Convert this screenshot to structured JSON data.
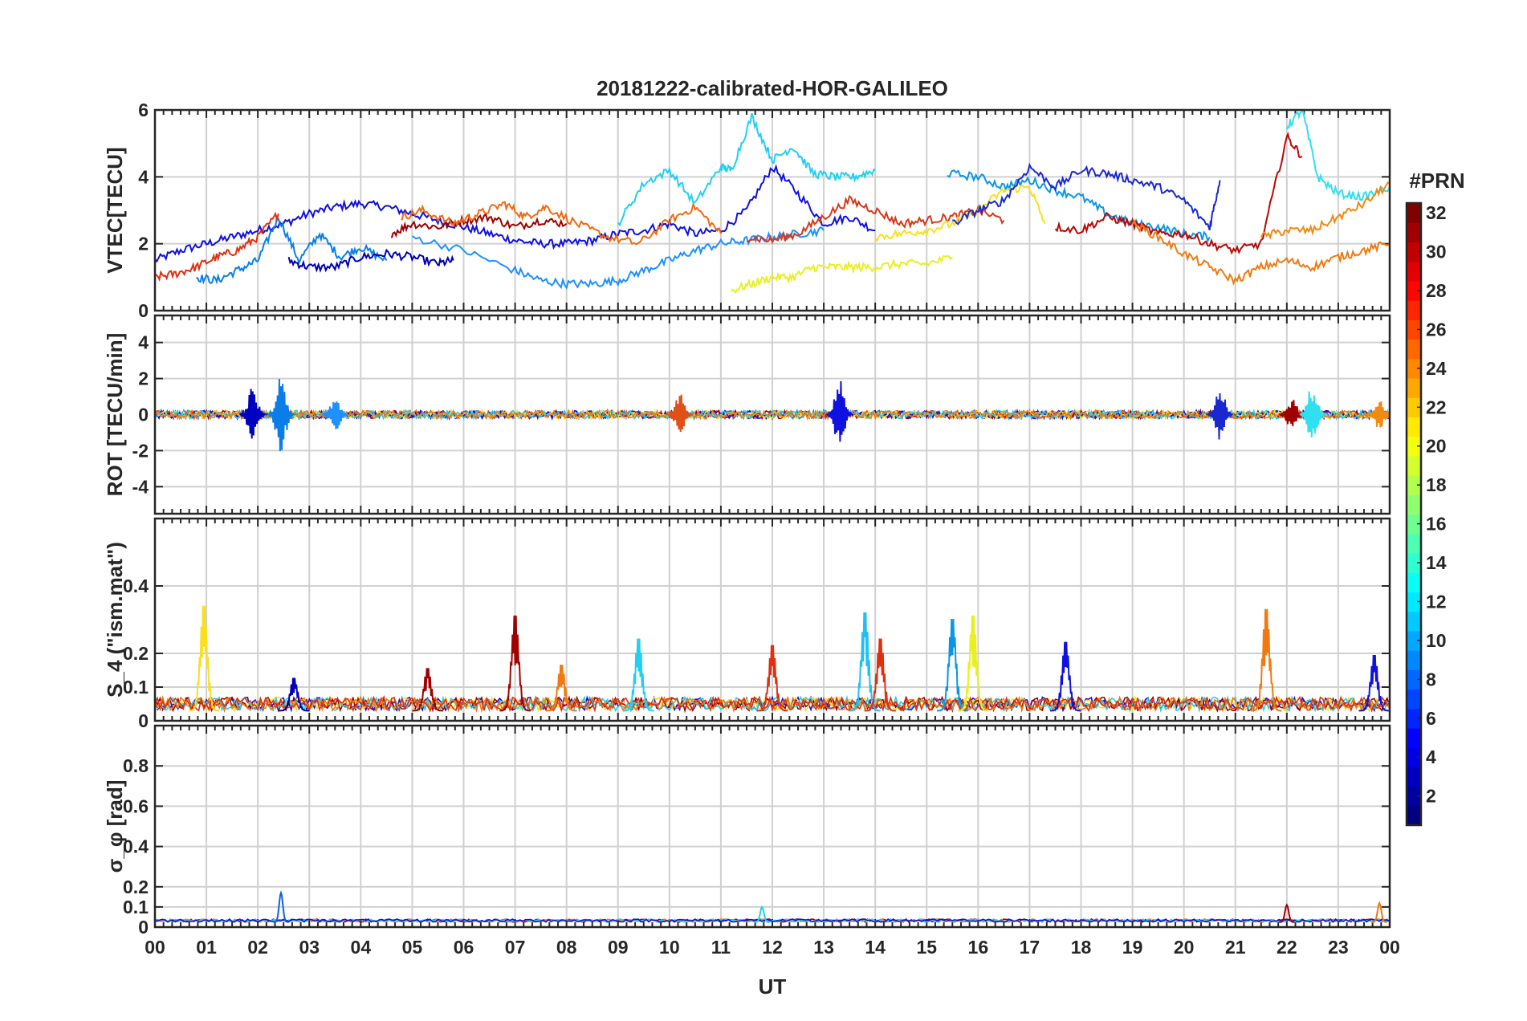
{
  "title": "20181222-calibrated-HOR-GALILEO",
  "chart_data": [
    {
      "type": "line",
      "panel": "vtec",
      "ylabel": "VTEC[TECU]",
      "ylim": [
        0,
        6
      ],
      "yticks": [
        0,
        2,
        4,
        6
      ],
      "yticklabels": [
        "0",
        "2",
        "4",
        "6"
      ],
      "grid": true,
      "series": [
        {
          "prn": 2,
          "color": "#1010e0",
          "x": [
            0,
            0.5,
            1,
            1.5,
            2,
            2.5,
            3,
            3.5,
            4,
            4.5,
            5,
            5.5,
            6,
            6.5,
            7,
            7.5,
            8,
            8.5,
            9,
            9.5,
            10,
            10.5,
            11,
            11.5,
            12,
            12.5,
            13,
            13.5,
            14
          ],
          "y": [
            1.5,
            1.8,
            2.0,
            2.2,
            2.4,
            2.6,
            2.9,
            3.1,
            3.2,
            3.1,
            2.9,
            2.7,
            2.5,
            2.3,
            2.1,
            2.0,
            2.0,
            2.1,
            2.3,
            2.4,
            2.6,
            2.3,
            2.4,
            3.0,
            4.3,
            3.5,
            2.6,
            2.8,
            2.4
          ]
        },
        {
          "prn": 9,
          "color": "#0a7ee8",
          "x": [
            0.8,
            1.2,
            1.6,
            2.0,
            2.4,
            2.8,
            3.2,
            3.6,
            4.0,
            4.5
          ],
          "y": [
            1.0,
            0.9,
            1.2,
            1.5,
            2.8,
            1.5,
            2.3,
            1.6,
            1.9,
            1.5
          ]
        },
        {
          "prn": 3,
          "color": "#0000b8",
          "x": [
            2.6,
            3.0,
            3.5,
            4.0,
            4.5,
            5.0,
            5.5,
            5.8
          ],
          "y": [
            1.5,
            1.3,
            1.3,
            1.6,
            1.7,
            1.6,
            1.4,
            1.5
          ]
        },
        {
          "prn": 27,
          "color": "#e03010",
          "x": [
            0,
            0.4,
            0.8,
            1.2,
            1.6,
            2.0,
            2.4
          ],
          "y": [
            1.0,
            1.1,
            1.3,
            1.6,
            1.8,
            2.2,
            2.9
          ]
        },
        {
          "prn": 31,
          "color": "#a00000",
          "x": [
            4.6,
            5.0,
            5.5,
            6.0,
            6.5,
            7.0,
            7.5,
            8.0
          ],
          "y": [
            2.3,
            2.6,
            2.5,
            2.7,
            2.8,
            2.5,
            2.7,
            2.6
          ]
        },
        {
          "prn": 24,
          "color": "#f06a10",
          "x": [
            4.8,
            5.2,
            5.8,
            6.3,
            6.8,
            7.2,
            7.6,
            8.2,
            8.8,
            9.4,
            10.0,
            10.5,
            11.0
          ],
          "y": [
            2.8,
            3.0,
            2.6,
            2.9,
            3.2,
            2.8,
            3.1,
            2.6,
            2.2,
            2.0,
            2.7,
            3.1,
            2.3
          ]
        },
        {
          "prn": 8,
          "color": "#1e90ff",
          "x": [
            5.0,
            6.0,
            7.0,
            7.5,
            8.0,
            8.5,
            9.0,
            9.5,
            10.0,
            10.5,
            11.0,
            11.5,
            12.0,
            12.5,
            13.0
          ],
          "y": [
            2.2,
            1.8,
            1.2,
            0.9,
            0.8,
            0.8,
            0.9,
            1.2,
            1.5,
            1.8,
            2.0,
            2.1,
            2.2,
            2.3,
            2.4
          ]
        },
        {
          "prn": 12,
          "color": "#20d0f0",
          "x": [
            9.0,
            9.5,
            10.0,
            10.5,
            11.0,
            11.2,
            11.6,
            12.0,
            12.4,
            12.8,
            13.2,
            13.6,
            14.0
          ],
          "y": [
            2.6,
            3.8,
            4.2,
            3.2,
            4.3,
            4.2,
            5.8,
            4.5,
            4.9,
            4.1,
            4.0,
            4.0,
            4.2
          ]
        },
        {
          "prn": 19,
          "color": "#e8f020",
          "x": [
            11.2,
            11.6,
            12.0,
            12.4,
            12.8,
            13.2,
            13.6,
            14.0,
            14.5,
            15.0,
            15.5
          ],
          "y": [
            0.6,
            0.8,
            1.0,
            1.0,
            1.3,
            1.3,
            1.3,
            1.3,
            1.4,
            1.4,
            1.6
          ]
        },
        {
          "prn": 26,
          "color": "#d83818",
          "x": [
            11.5,
            12.0,
            12.5,
            13.0,
            13.5,
            14.0,
            14.5,
            15.0,
            15.5,
            16.0,
            16.5
          ],
          "y": [
            2.2,
            2.1,
            2.3,
            2.8,
            3.3,
            3.0,
            2.6,
            2.7,
            2.8,
            3.0,
            2.7
          ]
        },
        {
          "prn": 10,
          "color": "#0a96e8",
          "x": [
            15.4,
            16.0,
            16.5,
            17.0,
            17.5,
            18.0,
            18.5,
            19.0,
            19.5,
            20.0,
            20.5
          ],
          "y": [
            4.1,
            4.0,
            3.7,
            3.9,
            3.6,
            3.4,
            2.9,
            2.6,
            2.5,
            2.3,
            2.2
          ]
        },
        {
          "prn": 20,
          "color": "#f8e020",
          "x": [
            14.0,
            14.5,
            15.0,
            15.5,
            16.0,
            16.5,
            17.0,
            17.3
          ],
          "y": [
            2.2,
            2.3,
            2.4,
            2.6,
            3.0,
            3.6,
            3.7,
            2.6
          ]
        },
        {
          "prn": 4,
          "color": "#1a28d0",
          "x": [
            15.5,
            16.0,
            16.5,
            17.0,
            17.5,
            18.0,
            18.5,
            19.0,
            19.5,
            20.0,
            20.5,
            20.7
          ],
          "y": [
            2.6,
            3.0,
            3.3,
            4.3,
            3.7,
            4.2,
            4.1,
            3.9,
            3.7,
            3.3,
            2.5,
            3.9
          ]
        },
        {
          "prn": 30,
          "color": "#b80808",
          "x": [
            17.5,
            18.0,
            18.5,
            19.0,
            19.5,
            20.0,
            20.5,
            21.0,
            21.5,
            22.0,
            22.3
          ],
          "y": [
            2.5,
            2.4,
            2.8,
            2.6,
            2.3,
            2.3,
            2.0,
            1.8,
            2.0,
            5.2,
            4.6
          ]
        },
        {
          "prn": 25,
          "color": "#f07a10",
          "x": [
            19.0,
            19.5,
            20.0,
            20.5,
            21.0,
            21.5,
            22.0,
            22.5,
            23.0,
            23.5,
            24.0
          ],
          "y": [
            2.6,
            2.2,
            1.7,
            1.3,
            0.9,
            1.3,
            1.5,
            1.3,
            1.6,
            1.8,
            2.0
          ]
        },
        {
          "prn": 13,
          "color": "#30e0f0",
          "x": [
            22.0,
            22.3,
            22.6,
            23.0,
            23.5,
            24.0
          ],
          "y": [
            5.5,
            6.0,
            4.0,
            3.5,
            3.4,
            3.7
          ]
        },
        {
          "prn": 23,
          "color": "#f08a10",
          "x": [
            21.5,
            22.0,
            22.5,
            23.0,
            23.5,
            24.0
          ],
          "y": [
            2.2,
            2.4,
            2.4,
            2.8,
            3.2,
            3.8
          ]
        }
      ]
    },
    {
      "type": "line",
      "panel": "rot",
      "ylabel": "ROT [TECU/min]",
      "ylim": [
        -5.5,
        5.5
      ],
      "yticks": [
        -4,
        -2,
        0,
        2,
        4
      ],
      "yticklabels": [
        "-4",
        "-2",
        "0",
        "2",
        "4"
      ],
      "grid": true,
      "baseline": 0,
      "bursts": [
        {
          "x": 1.9,
          "amp": 1.6,
          "color": "#0000c0"
        },
        {
          "x": 2.45,
          "amp": 2.3,
          "color": "#0a7ee8"
        },
        {
          "x": 3.5,
          "amp": 1.0,
          "color": "#1e90ff"
        },
        {
          "x": 10.2,
          "amp": 1.2,
          "color": "#e05018"
        },
        {
          "x": 13.3,
          "amp": 2.1,
          "color": "#1010e0"
        },
        {
          "x": 20.7,
          "amp": 1.7,
          "color": "#1a28d0"
        },
        {
          "x": 22.1,
          "amp": 1.0,
          "color": "#a00000"
        },
        {
          "x": 22.5,
          "amp": 1.8,
          "color": "#30e0f0"
        },
        {
          "x": 23.8,
          "amp": 0.9,
          "color": "#f08a10"
        }
      ]
    },
    {
      "type": "line",
      "panel": "s4",
      "ylabel": "S_4 (\"ism.mat\")",
      "ylim": [
        0,
        0.6
      ],
      "yticks": [
        0,
        0.1,
        0.2,
        0.4
      ],
      "yticklabels": [
        "0",
        "0.1",
        "0.2",
        "0.4"
      ],
      "grid": true,
      "baseline": 0.03,
      "peaks": [
        {
          "x": 0.95,
          "y": 0.35,
          "color": "#f8e020"
        },
        {
          "x": 2.7,
          "y": 0.13,
          "color": "#0000b8"
        },
        {
          "x": 5.3,
          "y": 0.16,
          "color": "#a00000"
        },
        {
          "x": 7.0,
          "y": 0.32,
          "color": "#a00000"
        },
        {
          "x": 7.9,
          "y": 0.17,
          "color": "#f07a10"
        },
        {
          "x": 9.4,
          "y": 0.25,
          "color": "#20d0f0"
        },
        {
          "x": 12.0,
          "y": 0.23,
          "color": "#e03010"
        },
        {
          "x": 13.8,
          "y": 0.33,
          "color": "#20c0f0"
        },
        {
          "x": 14.1,
          "y": 0.25,
          "color": "#e03010"
        },
        {
          "x": 15.5,
          "y": 0.31,
          "color": "#0a96e8"
        },
        {
          "x": 15.9,
          "y": 0.32,
          "color": "#e8f020"
        },
        {
          "x": 17.7,
          "y": 0.24,
          "color": "#1010e0"
        },
        {
          "x": 21.6,
          "y": 0.34,
          "color": "#f07a10"
        },
        {
          "x": 23.7,
          "y": 0.2,
          "color": "#1010e0"
        }
      ]
    },
    {
      "type": "line",
      "panel": "sigma",
      "ylabel": "σ_φ [rad]",
      "ylim": [
        0,
        1
      ],
      "yticks": [
        0,
        0.1,
        0.2,
        0.4,
        0.6,
        0.8
      ],
      "yticklabels": [
        "0",
        "0.1",
        "0.2",
        "0.4",
        "0.6",
        "0.8"
      ],
      "grid": true,
      "baseline": 0.025,
      "features": [
        {
          "x": 2.45,
          "y": 0.17,
          "color": "#1060e0"
        },
        {
          "x": 11.8,
          "y": 0.1,
          "color": "#20d0f0"
        },
        {
          "x": 22.0,
          "y": 0.11,
          "color": "#a00000"
        },
        {
          "x": 23.8,
          "y": 0.12,
          "color": "#f07a10"
        }
      ],
      "xlabel": "UT",
      "xlim": [
        0,
        24
      ],
      "xticklabels": [
        "00",
        "01",
        "02",
        "03",
        "04",
        "05",
        "06",
        "07",
        "08",
        "09",
        "10",
        "11",
        "12",
        "13",
        "14",
        "15",
        "16",
        "17",
        "18",
        "19",
        "20",
        "21",
        "22",
        "23",
        "00"
      ]
    }
  ],
  "colorbar": {
    "label": "#PRN",
    "range": [
      1,
      32
    ],
    "ticks": [
      2,
      4,
      6,
      8,
      10,
      12,
      14,
      16,
      18,
      20,
      22,
      24,
      26,
      28,
      30,
      32
    ],
    "ticklabels": [
      "2",
      "4",
      "6",
      "8",
      "10",
      "12",
      "14",
      "16",
      "18",
      "20",
      "22",
      "24",
      "26",
      "28",
      "30",
      "32"
    ],
    "colormap": "jet"
  }
}
